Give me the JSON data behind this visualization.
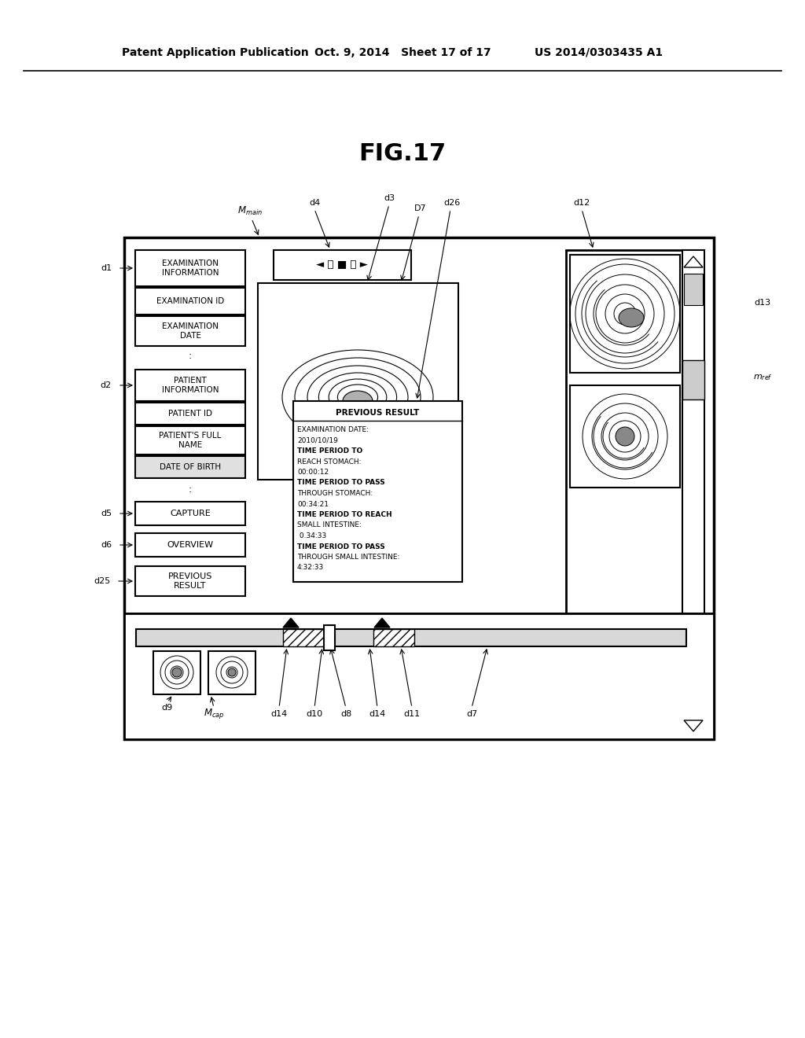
{
  "title": "FIG.17",
  "header_left": "Patent Application Publication",
  "header_mid": "Oct. 9, 2014   Sheet 17 of 17",
  "header_right": "US 2014/0303435 A1",
  "bg_color": "#ffffff",
  "fig_size": [
    10.24,
    13.2
  ],
  "dpi": 100
}
